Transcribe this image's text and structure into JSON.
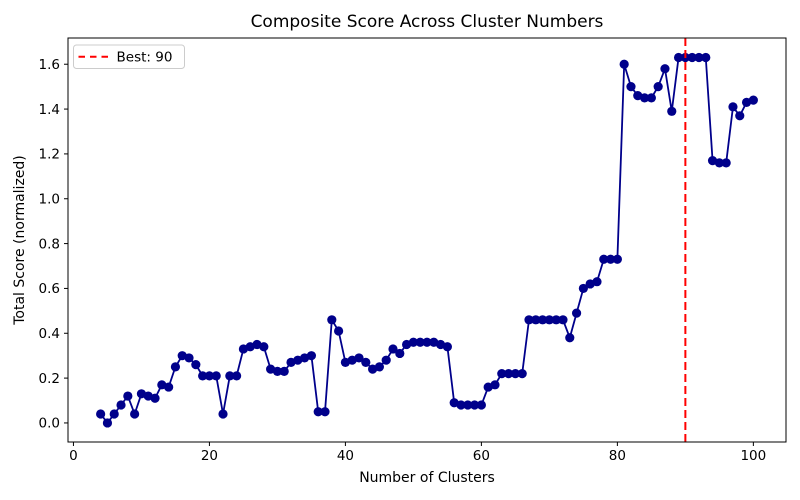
{
  "title": "Composite Score Across Cluster Numbers",
  "xlabel": "Number of Clusters",
  "ylabel": "Total Score (normalized)",
  "legend": {
    "label": "Best: 90",
    "position": "upper-left"
  },
  "colors": {
    "series": "#00008b",
    "marker": "#00008b",
    "best_line": "#ff0000",
    "spine": "#000000",
    "legend_border": "#cccccc",
    "background": "#ffffff"
  },
  "chart_data": {
    "type": "line",
    "marker": "circle",
    "grid": false,
    "best_x": 90,
    "xlim": [
      -0.8,
      104.8
    ],
    "ylim": [
      -0.085,
      1.717
    ],
    "xticks": [
      0,
      20,
      40,
      60,
      80,
      100
    ],
    "xtick_labels": [
      "0",
      "20",
      "40",
      "60",
      "80",
      "100"
    ],
    "yticks": [
      0.0,
      0.2,
      0.4,
      0.6,
      0.8,
      1.0,
      1.2,
      1.4,
      1.6
    ],
    "ytick_labels": [
      "0.0",
      "0.2",
      "0.4",
      "0.6",
      "0.8",
      "1.0",
      "1.2",
      "1.4",
      "1.6"
    ],
    "x": [
      4,
      5,
      6,
      7,
      8,
      9,
      10,
      11,
      12,
      13,
      14,
      15,
      16,
      17,
      18,
      19,
      20,
      21,
      22,
      23,
      24,
      25,
      26,
      27,
      28,
      29,
      30,
      31,
      32,
      33,
      34,
      35,
      36,
      37,
      38,
      39,
      40,
      41,
      42,
      43,
      44,
      45,
      46,
      47,
      48,
      49,
      50,
      51,
      52,
      53,
      54,
      55,
      56,
      57,
      58,
      59,
      60,
      61,
      62,
      63,
      64,
      65,
      66,
      67,
      68,
      69,
      70,
      71,
      72,
      73,
      74,
      75,
      76,
      77,
      78,
      79,
      80,
      81,
      82,
      83,
      84,
      85,
      86,
      87,
      88,
      89,
      90,
      91,
      92,
      93,
      94,
      95,
      96,
      97,
      98,
      99,
      100
    ],
    "y": [
      0.04,
      0.0,
      0.04,
      0.08,
      0.12,
      0.04,
      0.13,
      0.12,
      0.11,
      0.17,
      0.16,
      0.25,
      0.3,
      0.29,
      0.26,
      0.21,
      0.21,
      0.21,
      0.04,
      0.21,
      0.21,
      0.33,
      0.34,
      0.35,
      0.34,
      0.24,
      0.23,
      0.23,
      0.27,
      0.28,
      0.29,
      0.3,
      0.05,
      0.05,
      0.46,
      0.41,
      0.27,
      0.28,
      0.29,
      0.27,
      0.24,
      0.25,
      0.28,
      0.33,
      0.31,
      0.35,
      0.36,
      0.36,
      0.36,
      0.36,
      0.35,
      0.34,
      0.09,
      0.08,
      0.08,
      0.08,
      0.08,
      0.16,
      0.17,
      0.22,
      0.22,
      0.22,
      0.22,
      0.46,
      0.46,
      0.46,
      0.46,
      0.46,
      0.46,
      0.38,
      0.49,
      0.6,
      0.62,
      0.63,
      0.73,
      0.73,
      0.73,
      1.6,
      1.5,
      1.46,
      1.45,
      1.45,
      1.5,
      1.58,
      1.39,
      1.63,
      1.63,
      1.63,
      1.63,
      1.63,
      1.17,
      1.16,
      1.16,
      1.41,
      1.37,
      1.43,
      1.44
    ]
  }
}
